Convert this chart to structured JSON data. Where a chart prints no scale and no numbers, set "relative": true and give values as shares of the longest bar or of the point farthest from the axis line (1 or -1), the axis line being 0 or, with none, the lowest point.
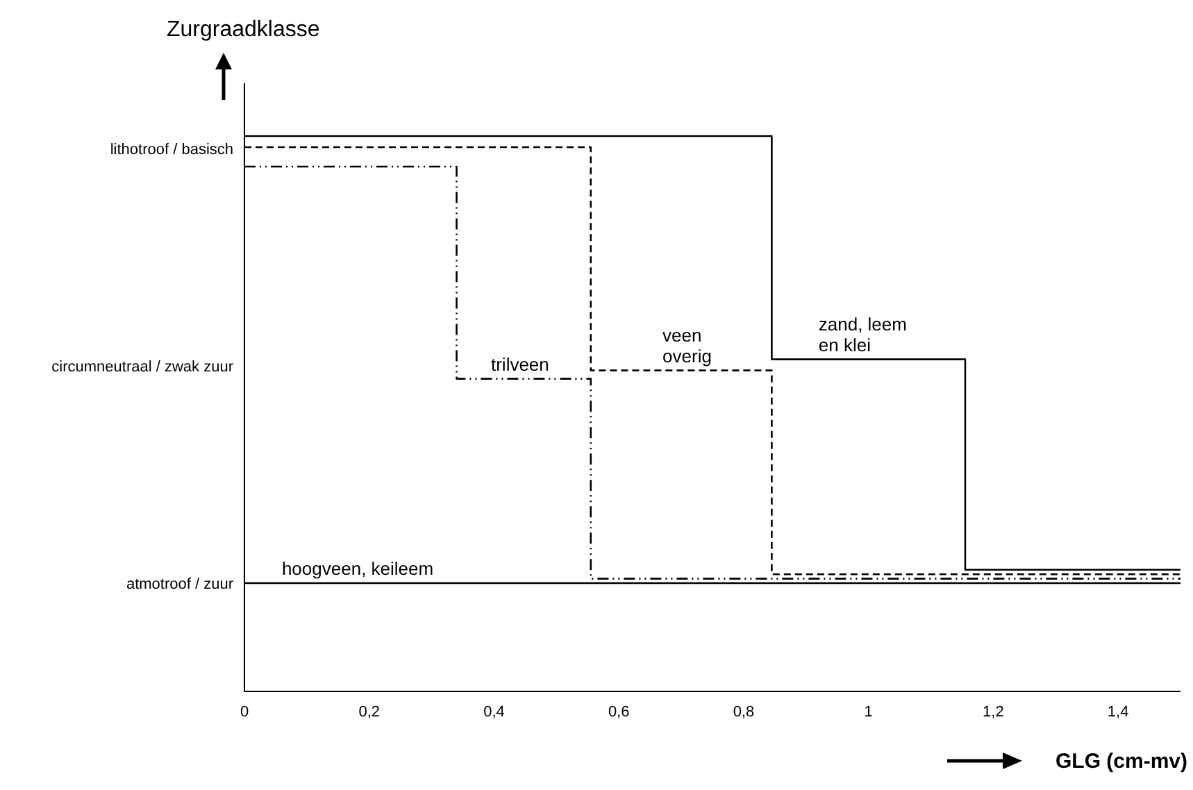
{
  "chart_data": {
    "type": "step",
    "relative": true,
    "ylabel": "Zurgraadklasse",
    "xlabel": "GLG (cm-mv)",
    "xlim": [
      0,
      1.5
    ],
    "xticks": [
      0,
      {
        "value": 0.2,
        "label": "0,2"
      },
      {
        "value": 0.4,
        "label": "0,4"
      },
      {
        "value": 0.6,
        "label": "0,6"
      },
      {
        "value": 0.8,
        "label": "0,8"
      },
      1,
      {
        "value": 1.2,
        "label": "1,2"
      },
      {
        "value": 1.4,
        "label": "1,4"
      }
    ],
    "y_categories": [
      "lithotroof / basisch",
      "circumneutraal / zwak zuur",
      "atmotroof / zuur"
    ],
    "grid": false,
    "marker": "none",
    "series": [
      {
        "color": "#000000",
        "line_style": "solid",
        "x": [
          0,
          0.845,
          1.155,
          1.5
        ],
        "values": [
          1,
          0.598,
          0.219,
          0.219
        ]
      },
      {
        "color": "#000000",
        "line_style": "dashed",
        "x": [
          0,
          0.555,
          0.845,
          1.5
        ],
        "values": [
          0.98,
          0.578,
          0.211,
          0.211
        ]
      },
      {
        "color": "#000000",
        "line_style": "dashdot",
        "x": [
          0,
          0.34,
          0.555,
          1.5
        ],
        "values": [
          0.945,
          0.563,
          0.203,
          0.203
        ]
      },
      {
        "color": "#000000",
        "line_style": "solid",
        "x": [
          0,
          1.5
        ],
        "values": [
          0.195,
          0.195
        ]
      }
    ],
    "annotations": [
      {
        "text": "zand, leem\nen klei",
        "x": 0.92,
        "y": 0.598
      },
      {
        "text": "veen\noverig",
        "x": 0.67,
        "y": 0.578
      },
      {
        "text": "trilveen",
        "x": 0.395,
        "y": 0.563
      },
      {
        "text": "hoogveen, keileem",
        "x": 0.06,
        "y": 0.195
      }
    ]
  }
}
